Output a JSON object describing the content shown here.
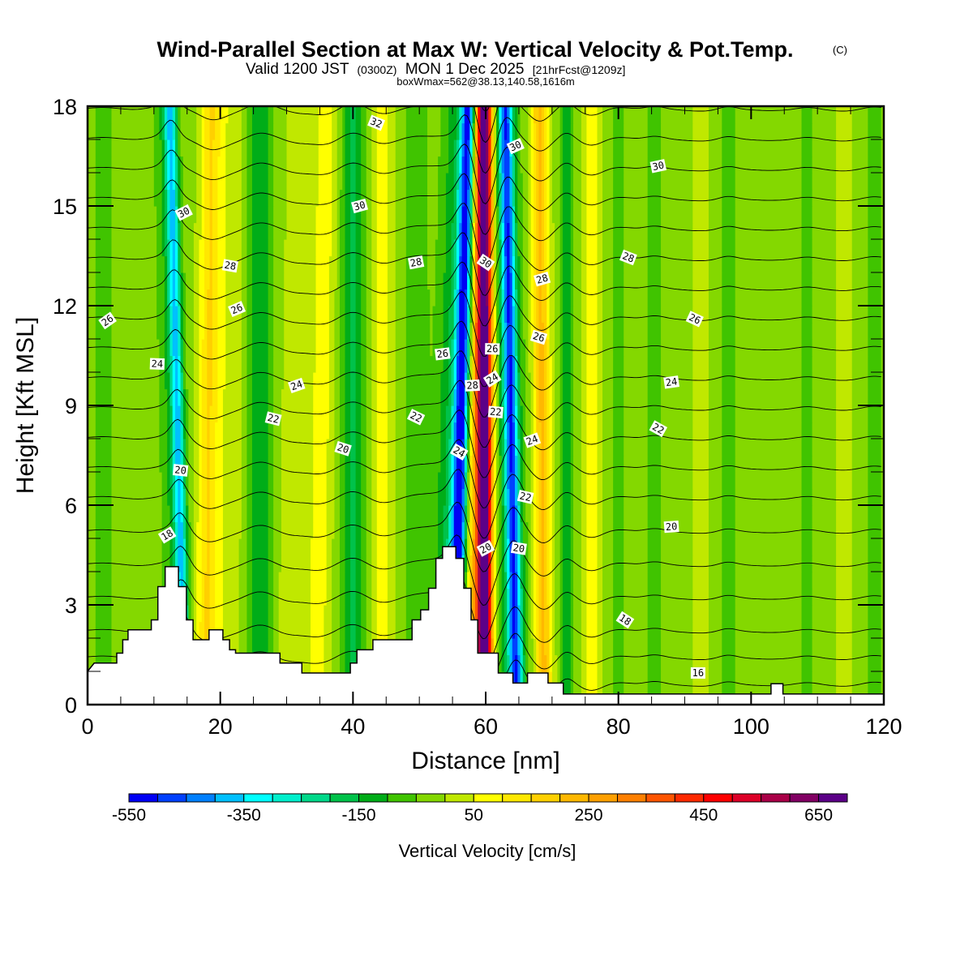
{
  "header": {
    "title": "Wind-Parallel Section at Max W: Vertical Velocity & Pot.Temp.",
    "copyright": "(C)",
    "valid_a": "Valid 1200 JST",
    "valid_utc": "(0300Z)",
    "valid_b": "MON 1 Dec 2025",
    "forecast": "[21hrFcst@1209z]",
    "boxwmax": "boxWmax=562@38.13,140.58,1616m"
  },
  "chart_data": {
    "type": "heatmap",
    "title": "Wind-Parallel Section at Max W: Vertical Velocity & Pot.Temp.",
    "xlabel": "Distance [nm]",
    "ylabel": "Height [Kft MSL]",
    "xlim": [
      0,
      120
    ],
    "ylim": [
      0,
      18
    ],
    "x_ticks": [
      "0",
      "20",
      "40",
      "60",
      "80",
      "100",
      "120"
    ],
    "x_tick_values": [
      0,
      20,
      40,
      60,
      80,
      100,
      120
    ],
    "x_minor_step": 5,
    "y_ticks": [
      "0",
      "3",
      "6",
      "9",
      "12",
      "15",
      "18"
    ],
    "y_tick_values": [
      0,
      3,
      6,
      9,
      12,
      15,
      18
    ],
    "y_minor_step": 1,
    "colorbar": {
      "title": "Vertical Velocity [cm/s]",
      "min": -550,
      "step": 50,
      "colors": [
        "#0000f5",
        "#0040ff",
        "#0080ff",
        "#00c0ff",
        "#00ffff",
        "#00efcc",
        "#00d98a",
        "#00c24a",
        "#00ad18",
        "#40c400",
        "#84d800",
        "#c0e800",
        "#ffff00",
        "#ffe800",
        "#ffd000",
        "#ffb800",
        "#ffa000",
        "#ff8000",
        "#ff5500",
        "#ff2a00",
        "#ff0000",
        "#dd0028",
        "#aa0048",
        "#820064",
        "#5c0088"
      ],
      "labels": [
        "-550",
        "-350",
        "-150",
        "50",
        "250",
        "450",
        "650"
      ],
      "label_values": [
        -550,
        -350,
        -150,
        50,
        250,
        450,
        650
      ]
    },
    "vertical_velocity_bands": [
      {
        "x0": 2.5,
        "tilt": 0.0,
        "amp": -40,
        "width": 2.2
      },
      {
        "x0": 8.5,
        "tilt": 0.0,
        "amp": 20,
        "width": 2.5
      },
      {
        "x0": 14.6,
        "tilt": -0.12,
        "amp": -300,
        "width": 0.9
      },
      {
        "x0": 13.6,
        "tilt": -0.12,
        "amp": -80,
        "width": 2.0
      },
      {
        "x0": 17.8,
        "tilt": 0.05,
        "amp": 170,
        "width": 1.6
      },
      {
        "x0": 21.0,
        "tilt": 0.05,
        "amp": 60,
        "width": 2.0
      },
      {
        "x0": 26.0,
        "tilt": 0.0,
        "amp": -130,
        "width": 1.8
      },
      {
        "x0": 30.0,
        "tilt": 0.1,
        "amp": 60,
        "width": 1.6
      },
      {
        "x0": 34.5,
        "tilt": 0.08,
        "amp": 100,
        "width": 1.8
      },
      {
        "x0": 40.0,
        "tilt": 0.0,
        "amp": -140,
        "width": 1.7
      },
      {
        "x0": 44.5,
        "tilt": 0.0,
        "amp": 90,
        "width": 1.8
      },
      {
        "x0": 49.5,
        "tilt": 0.0,
        "amp": -60,
        "width": 2.0
      },
      {
        "x0": 55.4,
        "tilt": 0.11,
        "amp": -560,
        "width": 1.1
      },
      {
        "x0": 54.0,
        "tilt": 0.11,
        "amp": -150,
        "width": 2.2
      },
      {
        "x0": 59.8,
        "tilt": 0.0,
        "amp": 640,
        "width": 1.15
      },
      {
        "x0": 58.6,
        "tilt": 0.0,
        "amp": 200,
        "width": 2.6
      },
      {
        "x0": 64.6,
        "tilt": -0.09,
        "amp": -380,
        "width": 1.0
      },
      {
        "x0": 64.0,
        "tilt": -0.09,
        "amp": -120,
        "width": 2.4
      },
      {
        "x0": 68.8,
        "tilt": -0.04,
        "amp": 230,
        "width": 1.3
      },
      {
        "x0": 72.2,
        "tilt": 0.0,
        "amp": -130,
        "width": 1.0
      },
      {
        "x0": 76.0,
        "tilt": 0.0,
        "amp": 110,
        "width": 1.4
      },
      {
        "x0": 80.0,
        "tilt": 0.0,
        "amp": -40,
        "width": 1.6
      },
      {
        "x0": 85.5,
        "tilt": 0.0,
        "amp": -60,
        "width": 1.3
      },
      {
        "x0": 92.5,
        "tilt": 0.0,
        "amp": 30,
        "width": 2.0
      },
      {
        "x0": 96.5,
        "tilt": 0.0,
        "amp": -60,
        "width": 1.2
      },
      {
        "x0": 103.0,
        "tilt": 0.0,
        "amp": 20,
        "width": 2.0
      },
      {
        "x0": 108.5,
        "tilt": 0.0,
        "amp": -40,
        "width": 1.4
      },
      {
        "x0": 114.0,
        "tilt": 0.0,
        "amp": 30,
        "width": 1.8
      },
      {
        "x0": 118.5,
        "tilt": 0.0,
        "amp": -50,
        "width": 1.5
      }
    ],
    "background_w": -20,
    "pot_temp_contours": {
      "levels_start": 15,
      "levels_step": 1,
      "base_heights_kft": [
        0.6,
        1.4,
        2.2,
        3.2,
        4.2,
        5.2,
        6.2,
        7.1,
        8.0,
        8.9,
        9.8,
        10.7,
        11.6,
        12.5,
        13.4,
        14.3,
        15.2,
        16.1,
        17.0,
        17.9,
        18.8
      ],
      "labels": [
        {
          "x": 3.0,
          "z": 11.55,
          "text": "26"
        },
        {
          "x": 10.5,
          "z": 10.25,
          "text": "24"
        },
        {
          "x": 12.0,
          "z": 5.1,
          "text": "18"
        },
        {
          "x": 14.0,
          "z": 7.05,
          "text": "20"
        },
        {
          "x": 14.5,
          "z": 14.8,
          "text": "30"
        },
        {
          "x": 21.5,
          "z": 13.2,
          "text": "28"
        },
        {
          "x": 22.5,
          "z": 11.9,
          "text": "26"
        },
        {
          "x": 28.0,
          "z": 8.6,
          "text": "22"
        },
        {
          "x": 31.5,
          "z": 9.6,
          "text": "24"
        },
        {
          "x": 38.5,
          "z": 7.7,
          "text": "20"
        },
        {
          "x": 41.0,
          "z": 15.0,
          "text": "30"
        },
        {
          "x": 43.5,
          "z": 17.5,
          "text": "32"
        },
        {
          "x": 49.5,
          "z": 13.3,
          "text": "28"
        },
        {
          "x": 49.5,
          "z": 8.65,
          "text": "22"
        },
        {
          "x": 53.5,
          "z": 10.55,
          "text": "26"
        },
        {
          "x": 56.0,
          "z": 7.6,
          "text": "24"
        },
        {
          "x": 58.0,
          "z": 9.6,
          "text": "28"
        },
        {
          "x": 60.0,
          "z": 13.3,
          "text": "30"
        },
        {
          "x": 61.0,
          "z": 10.7,
          "text": "26"
        },
        {
          "x": 61.0,
          "z": 9.8,
          "text": "24"
        },
        {
          "x": 61.5,
          "z": 8.8,
          "text": "22"
        },
        {
          "x": 60.0,
          "z": 4.7,
          "text": "20"
        },
        {
          "x": 65.0,
          "z": 4.7,
          "text": "20"
        },
        {
          "x": 64.5,
          "z": 16.8,
          "text": "30"
        },
        {
          "x": 66.0,
          "z": 6.25,
          "text": "22"
        },
        {
          "x": 67.0,
          "z": 7.95,
          "text": "24"
        },
        {
          "x": 68.0,
          "z": 11.05,
          "text": "26"
        },
        {
          "x": 68.5,
          "z": 12.8,
          "text": "28"
        },
        {
          "x": 81.5,
          "z": 13.45,
          "text": "28"
        },
        {
          "x": 86.0,
          "z": 16.2,
          "text": "30"
        },
        {
          "x": 91.5,
          "z": 11.6,
          "text": "26"
        },
        {
          "x": 88.0,
          "z": 9.7,
          "text": "24"
        },
        {
          "x": 86.0,
          "z": 8.3,
          "text": "22"
        },
        {
          "x": 88.0,
          "z": 5.35,
          "text": "20"
        },
        {
          "x": 81.0,
          "z": 2.55,
          "text": "18"
        },
        {
          "x": 92.0,
          "z": 0.95,
          "text": "16"
        }
      ]
    },
    "terrain_kft": [
      [
        0,
        1.0
      ],
      [
        1,
        1.25
      ],
      [
        4.4,
        1.25
      ],
      [
        4.4,
        1.55
      ],
      [
        5.3,
        1.55
      ],
      [
        5.3,
        1.95
      ],
      [
        6.1,
        1.95
      ],
      [
        6.1,
        2.25
      ],
      [
        9.6,
        2.25
      ],
      [
        9.6,
        2.55
      ],
      [
        10.6,
        2.55
      ],
      [
        10.6,
        3.55
      ],
      [
        11.7,
        3.55
      ],
      [
        11.7,
        4.15
      ],
      [
        13.7,
        4.15
      ],
      [
        13.7,
        3.55
      ],
      [
        14.9,
        3.55
      ],
      [
        14.9,
        2.55
      ],
      [
        15.9,
        2.55
      ],
      [
        15.9,
        1.95
      ],
      [
        18.3,
        1.95
      ],
      [
        18.3,
        2.25
      ],
      [
        20.4,
        2.25
      ],
      [
        20.4,
        1.95
      ],
      [
        21.4,
        1.95
      ],
      [
        21.4,
        1.65
      ],
      [
        22.3,
        1.65
      ],
      [
        22.3,
        1.55
      ],
      [
        29.0,
        1.55
      ],
      [
        29.0,
        1.25
      ],
      [
        32.3,
        1.25
      ],
      [
        32.3,
        0.95
      ],
      [
        39.6,
        0.95
      ],
      [
        39.6,
        1.25
      ],
      [
        40.6,
        1.25
      ],
      [
        40.6,
        1.65
      ],
      [
        43.0,
        1.65
      ],
      [
        43.0,
        1.95
      ],
      [
        48.9,
        1.95
      ],
      [
        48.9,
        2.55
      ],
      [
        50.2,
        2.55
      ],
      [
        50.2,
        2.85
      ],
      [
        51.4,
        2.85
      ],
      [
        51.4,
        3.5
      ],
      [
        52.5,
        3.5
      ],
      [
        52.5,
        4.4
      ],
      [
        53.5,
        4.4
      ],
      [
        53.5,
        4.75
      ],
      [
        55.5,
        4.75
      ],
      [
        55.5,
        4.4
      ],
      [
        56.7,
        4.4
      ],
      [
        56.7,
        3.5
      ],
      [
        57.8,
        3.5
      ],
      [
        57.8,
        2.55
      ],
      [
        58.8,
        2.55
      ],
      [
        58.8,
        1.55
      ],
      [
        61.9,
        1.55
      ],
      [
        61.9,
        0.95
      ],
      [
        64.1,
        0.95
      ],
      [
        64.1,
        0.65
      ],
      [
        66.3,
        0.65
      ],
      [
        66.3,
        0.95
      ],
      [
        69.4,
        0.95
      ],
      [
        69.4,
        0.65
      ],
      [
        71.7,
        0.65
      ],
      [
        71.7,
        0.32
      ],
      [
        103.0,
        0.32
      ],
      [
        103.0,
        0.63
      ],
      [
        104.8,
        0.63
      ],
      [
        104.8,
        0.32
      ],
      [
        120,
        0.32
      ]
    ]
  }
}
